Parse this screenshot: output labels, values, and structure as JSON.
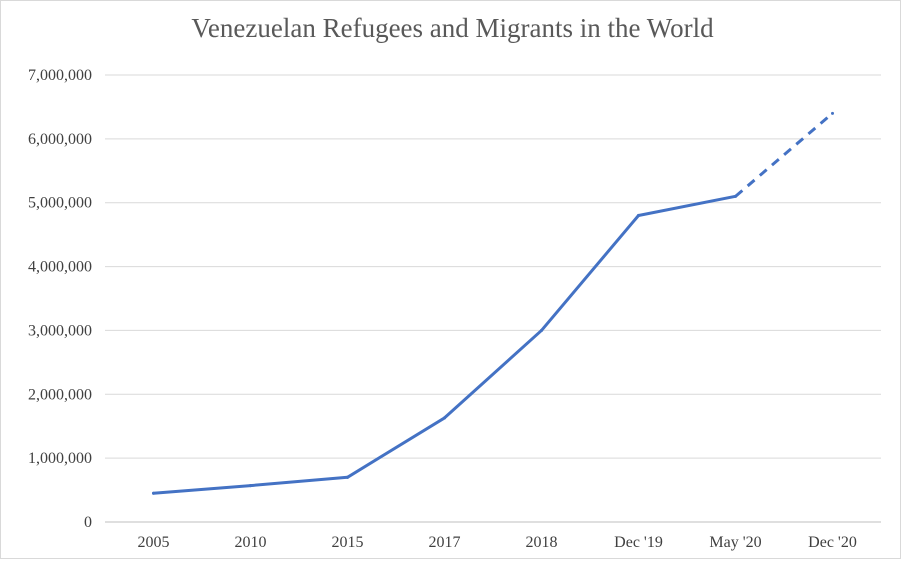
{
  "chart_data": {
    "type": "line",
    "title": "Venezuelan Refugees and Migrants in the World",
    "xlabel": "",
    "ylabel": "",
    "categories": [
      "2005",
      "2010",
      "2015",
      "2017",
      "2018",
      "Dec '19",
      "May '20",
      "Dec  '20"
    ],
    "series": [
      {
        "values": [
          450000,
          570000,
          700000,
          1630000,
          3000000,
          4800000,
          5100000,
          6400000
        ],
        "line_style": [
          "solid",
          "solid",
          "solid",
          "solid",
          "solid",
          "solid",
          "dashed"
        ],
        "color": "#4472c4"
      }
    ],
    "ylim": [
      0,
      7000000
    ],
    "yticks": [
      "0",
      "1,000,000",
      "2,000,000",
      "3,000,000",
      "4,000,000",
      "5,000,000",
      "6,000,000",
      "7,000,000"
    ],
    "grid": true,
    "legend": "none"
  }
}
